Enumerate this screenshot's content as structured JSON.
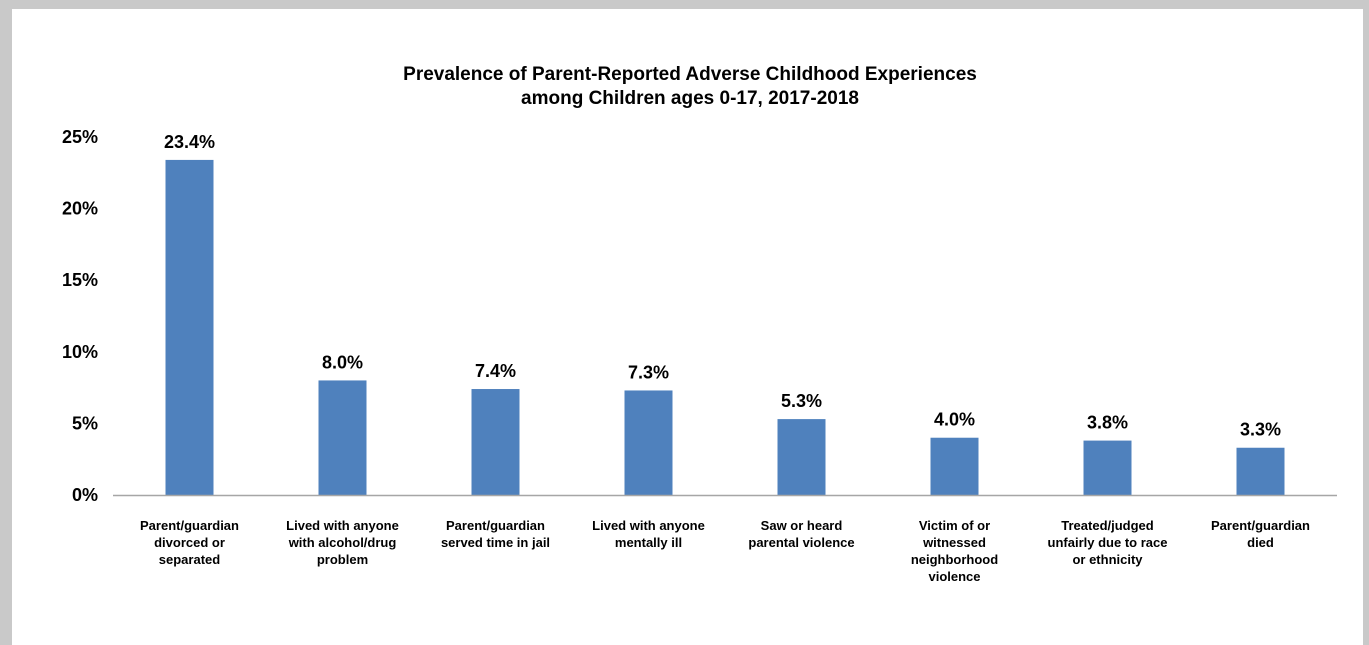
{
  "chart_data": {
    "type": "bar",
    "title": "Prevalence of Parent-Reported Adverse Childhood Experiences",
    "subtitle": "among Children ages 0-17, 2017-2018",
    "categories": [
      [
        "Parent/guardian",
        "divorced or",
        "separated"
      ],
      [
        "Lived with anyone",
        "with alcohol/drug",
        "problem"
      ],
      [
        "Parent/guardian",
        "served time in jail"
      ],
      [
        "Lived with anyone",
        "mentally ill"
      ],
      [
        "Saw or heard",
        "parental violence"
      ],
      [
        "Victim of or",
        "witnessed",
        "neighborhood",
        "violence"
      ],
      [
        "Treated/judged",
        "unfairly due to race",
        "or ethnicity"
      ],
      [
        "Parent/guardian",
        "died"
      ]
    ],
    "values": [
      23.4,
      8.0,
      7.4,
      7.3,
      5.3,
      4.0,
      3.8,
      3.3
    ],
    "data_labels": [
      "23.4%",
      "8.0%",
      "7.4%",
      "7.3%",
      "5.3%",
      "4.0%",
      "3.8%",
      "3.3%"
    ],
    "y_ticks": [
      "0%",
      "5%",
      "10%",
      "15%",
      "20%",
      "25%"
    ],
    "ylim": [
      0,
      25
    ],
    "xlabel": "",
    "ylabel": "",
    "grid": false,
    "legend": "none",
    "colors": {
      "bar": "#4f81bd",
      "axis": "#a6a6a6",
      "frame": "#c9c9c9",
      "text": "#000000"
    }
  }
}
